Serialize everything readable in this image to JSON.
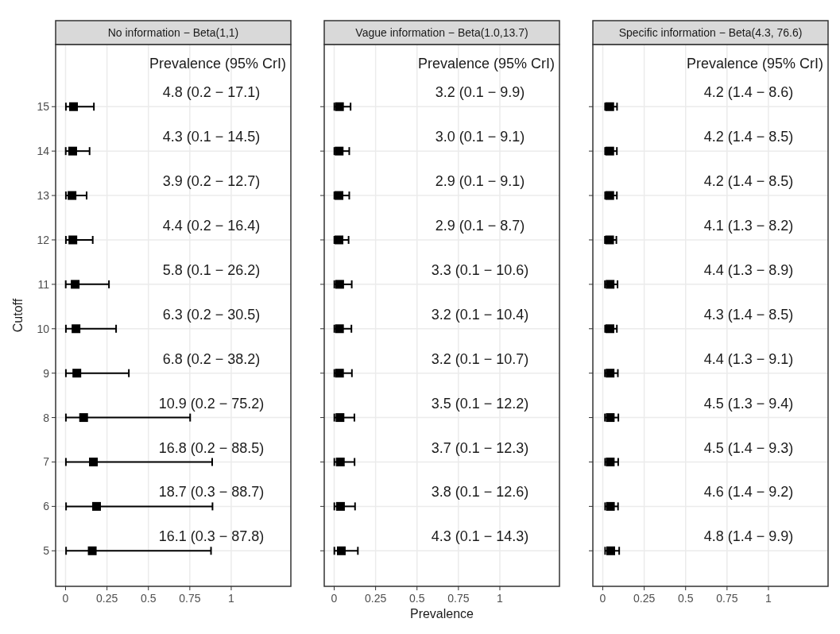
{
  "chart_data": [
    {
      "type": "scatter",
      "title": "No information − Beta(1,1)",
      "ylabel": "Cutoff",
      "marker": "square",
      "grid": true,
      "xlim": [
        -0.06,
        1.36
      ],
      "xticks": [
        0,
        0.25,
        0.5,
        0.75,
        1
      ],
      "ylim": [
        4.2,
        16.4
      ],
      "yticks": [
        5,
        6,
        7,
        8,
        9,
        10,
        11,
        12,
        13,
        14,
        15
      ],
      "annotations": [
        "Prevalence (95% CrI)",
        "4.8 (0.2 − 17.1)",
        "4.3 (0.1 − 14.5)",
        "3.9 (0.2 − 12.7)",
        "4.4 (0.2 − 16.4)",
        "5.8 (0.1 − 26.2)",
        "6.3 (0.2 − 30.5)",
        "6.8 (0.2 − 38.2)",
        "10.9 (0.2 − 75.2)",
        "16.8 (0.2 − 88.5)",
        "18.7 (0.3 − 88.7)",
        "16.1 (0.3 − 87.8)"
      ],
      "series": [
        {
          "color": "#000000",
          "x": [
            0.048,
            0.043,
            0.039,
            0.044,
            0.058,
            0.063,
            0.068,
            0.109,
            0.168,
            0.187,
            0.161
          ],
          "values": [
            15,
            14,
            13,
            12,
            11,
            10,
            9,
            8,
            7,
            6,
            5
          ],
          "xerrors": [
            [
              0.002,
              0.171
            ],
            [
              0.001,
              0.145
            ],
            [
              0.002,
              0.127
            ],
            [
              0.002,
              0.164
            ],
            [
              0.001,
              0.262
            ],
            [
              0.002,
              0.305
            ],
            [
              0.002,
              0.382
            ],
            [
              0.002,
              0.752
            ],
            [
              0.002,
              0.885
            ],
            [
              0.003,
              0.887
            ],
            [
              0.003,
              0.878
            ]
          ]
        }
      ]
    },
    {
      "type": "scatter",
      "title": "Vague information − Beta(1.0,13.7)",
      "xlabel": "Prevalence",
      "marker": "square",
      "grid": true,
      "tick_labels": "x",
      "xlim": [
        -0.06,
        1.36
      ],
      "xticks": [
        0,
        0.25,
        0.5,
        0.75,
        1
      ],
      "ylim": [
        4.2,
        16.4
      ],
      "yticks": [
        5,
        6,
        7,
        8,
        9,
        10,
        11,
        12,
        13,
        14,
        15
      ],
      "annotations": [
        "Prevalence (95% CrI)",
        "3.2 (0.1 − 9.9)",
        "3.0 (0.1 − 9.1)",
        "2.9 (0.1 − 9.1)",
        "2.9 (0.1 − 8.7)",
        "3.3 (0.1 − 10.6)",
        "3.2 (0.1 − 10.4)",
        "3.2 (0.1 − 10.7)",
        "3.5 (0.1 − 12.2)",
        "3.7 (0.1 − 12.3)",
        "3.8 (0.1 − 12.6)",
        "4.3 (0.1 − 14.3)"
      ],
      "series": [
        {
          "color": "#000000",
          "x": [
            0.032,
            0.03,
            0.029,
            0.029,
            0.033,
            0.032,
            0.032,
            0.035,
            0.037,
            0.038,
            0.043
          ],
          "values": [
            15,
            14,
            13,
            12,
            11,
            10,
            9,
            8,
            7,
            6,
            5
          ],
          "xerrors": [
            [
              0.001,
              0.099
            ],
            [
              0.001,
              0.091
            ],
            [
              0.001,
              0.091
            ],
            [
              0.001,
              0.087
            ],
            [
              0.001,
              0.106
            ],
            [
              0.001,
              0.104
            ],
            [
              0.001,
              0.107
            ],
            [
              0.001,
              0.122
            ],
            [
              0.001,
              0.123
            ],
            [
              0.001,
              0.126
            ],
            [
              0.001,
              0.143
            ]
          ]
        }
      ]
    },
    {
      "type": "scatter",
      "title": "Specific information − Beta(4.3, 76.6)",
      "marker": "square",
      "grid": true,
      "tick_labels": "x",
      "xlim": [
        -0.06,
        1.36
      ],
      "xticks": [
        0,
        0.25,
        0.5,
        0.75,
        1
      ],
      "ylim": [
        4.2,
        16.4
      ],
      "yticks": [
        5,
        6,
        7,
        8,
        9,
        10,
        11,
        12,
        13,
        14,
        15
      ],
      "annotations": [
        "Prevalence (95% CrI)",
        "4.2 (1.4 − 8.6)",
        "4.2 (1.4 − 8.5)",
        "4.2 (1.4 − 8.5)",
        "4.1 (1.3 − 8.2)",
        "4.4 (1.3 − 8.9)",
        "4.3 (1.4 − 8.5)",
        "4.4 (1.3 − 9.1)",
        "4.5 (1.3 − 9.4)",
        "4.5 (1.4 − 9.3)",
        "4.6 (1.4 − 9.2)",
        "4.8 (1.4 − 9.9)"
      ],
      "series": [
        {
          "color": "#000000",
          "x": [
            0.042,
            0.042,
            0.042,
            0.041,
            0.044,
            0.043,
            0.044,
            0.045,
            0.045,
            0.046,
            0.048
          ],
          "values": [
            15,
            14,
            13,
            12,
            11,
            10,
            9,
            8,
            7,
            6,
            5
          ],
          "xerrors": [
            [
              0.014,
              0.086
            ],
            [
              0.014,
              0.085
            ],
            [
              0.014,
              0.085
            ],
            [
              0.013,
              0.082
            ],
            [
              0.013,
              0.089
            ],
            [
              0.014,
              0.085
            ],
            [
              0.013,
              0.091
            ],
            [
              0.013,
              0.094
            ],
            [
              0.014,
              0.093
            ],
            [
              0.014,
              0.092
            ],
            [
              0.014,
              0.099
            ]
          ]
        }
      ]
    }
  ]
}
